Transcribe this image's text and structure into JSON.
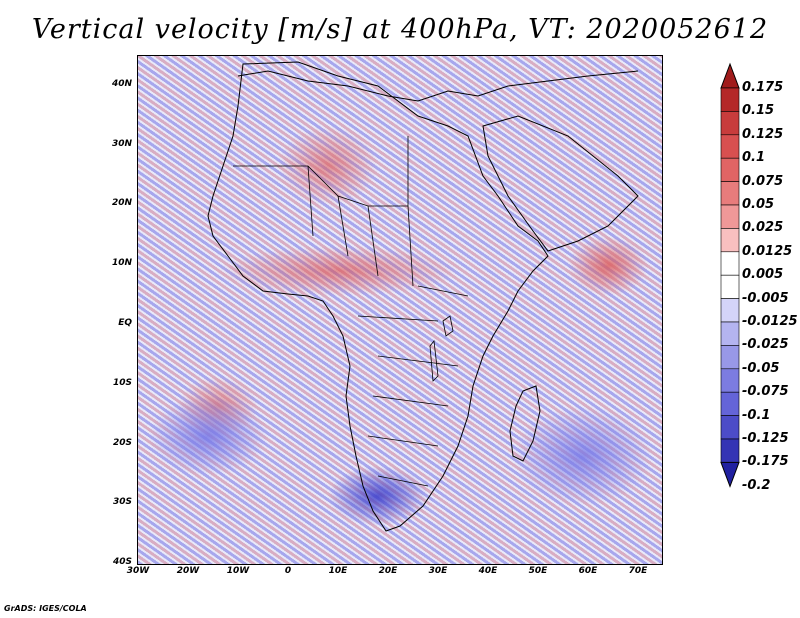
{
  "title": "Vertical velocity [m/s] at 400hPa, VT: 2020052612",
  "map": {
    "latitude_labels": [
      "40N",
      "30N",
      "20N",
      "10N",
      "EQ",
      "10S",
      "20S",
      "30S",
      "40S"
    ],
    "longitude_labels": [
      "30W",
      "20W",
      "10W",
      "0",
      "10E",
      "20E",
      "30E",
      "40E",
      "50E",
      "60E",
      "70E"
    ]
  },
  "colorbar": {
    "labels": [
      "0.175",
      "0.15",
      "0.125",
      "0.1",
      "0.075",
      "0.05",
      "0.025",
      "0.0125",
      "0.005",
      "-0.005",
      "-0.0125",
      "-0.025",
      "-0.05",
      "-0.075",
      "-0.1",
      "-0.125",
      "-0.175",
      "-0.2"
    ],
    "colors": [
      "#a01c1c",
      "#b42828",
      "#c83c3c",
      "#d85050",
      "#e06464",
      "#e87c7c",
      "#f09898",
      "#f8c0c0",
      "#ffffff",
      "#ffffff",
      "#d4d4f8",
      "#b4b4f0",
      "#9898e8",
      "#7c7ce0",
      "#6464d8",
      "#4c4cc8",
      "#3434b4",
      "#2020a0"
    ]
  },
  "footer": "GrADS: IGES/COLA"
}
